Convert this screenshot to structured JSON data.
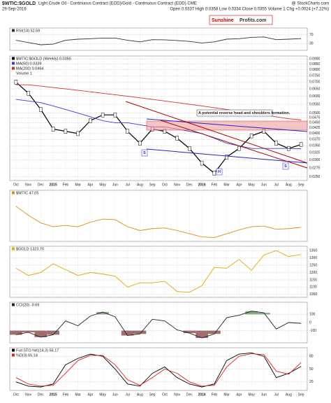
{
  "header": {
    "symbol": "$WTIC:$GOLD",
    "description": "Light Crude Oil - Continuous Contract (EOD)/Gold - Continuous Contract (EOD) CME",
    "source": "@ StockCharts.com",
    "date": "29-Sep-2016",
    "quote": "Open 0.0337 High 0.0358 Low 0.0334 Close 0.0355 Volume 1 Chg +0.0024 (+7.22%)",
    "logo_left": "Sunshine",
    "logo_right": "Profits.com"
  },
  "chart_data": [
    {
      "type": "line",
      "series": [
        {
          "name": "RSI(14) 52.59",
          "color": "#333333",
          "values": [
            45,
            35,
            25,
            28,
            45,
            50,
            52,
            55,
            55,
            45,
            38,
            48,
            47,
            44,
            40,
            33,
            38,
            50,
            52,
            58,
            60,
            48,
            50,
            52.59
          ]
        }
      ],
      "ylim": [
        0,
        100
      ],
      "yticks": [
        30,
        70
      ],
      "grid": true
    },
    {
      "type": "line",
      "categories": [
        "Oct",
        "Nov",
        "Dec",
        "2015",
        "Feb",
        "Mar",
        "Apr",
        "May",
        "Jun",
        "Jul",
        "Aug",
        "Sep",
        "Oct",
        "Nov",
        "Dec",
        "2016",
        "Feb",
        "Mar",
        "Apr",
        "May",
        "Jun",
        "Jul",
        "Aug",
        "Sep"
      ],
      "log_scale": true,
      "extra_legend": "Volume 1",
      "series": [
        {
          "name": "$WTIC:$GOLD (Weekly) 0.0355",
          "color": "#000000",
          "values": [
            0.07,
            0.062,
            0.052,
            0.042,
            0.041,
            0.04,
            0.046,
            0.049,
            0.049,
            0.041,
            0.036,
            0.042,
            0.041,
            0.038,
            0.034,
            0.029,
            0.026,
            0.031,
            0.034,
            0.039,
            0.041,
            0.036,
            0.034,
            0.0355
          ]
        },
        {
          "name": "MA(50) 0.0339",
          "color": "#3a3ad0",
          "values": [
            0.058,
            0.057,
            0.056,
            0.054,
            0.052,
            0.05,
            0.048,
            0.046,
            0.045,
            0.045,
            0.044,
            0.043,
            0.043,
            0.042,
            0.041,
            0.04,
            0.038,
            0.036,
            0.035,
            0.034,
            0.034,
            0.034,
            0.034,
            0.0339
          ]
        },
        {
          "name": "MA(200) 0.0464",
          "color": "#d03030",
          "values": [
            0.068,
            0.068,
            0.067,
            0.066,
            0.065,
            0.064,
            0.063,
            0.062,
            0.061,
            0.06,
            0.059,
            0.058,
            0.057,
            0.056,
            0.055,
            0.054,
            0.053,
            0.052,
            0.051,
            0.05,
            0.049,
            0.048,
            0.047,
            0.0464
          ]
        }
      ],
      "ylim": [
        0.024,
        0.093
      ],
      "yticks": [
        {
          "value": 0.09,
          "label": "0.0900"
        },
        {
          "value": 0.085,
          "label": "0.0850"
        },
        {
          "value": 0.08,
          "label": "0.0800"
        },
        {
          "value": 0.075,
          "label": "0.0750"
        },
        {
          "value": 0.07,
          "label": "0.0700"
        },
        {
          "value": 0.065,
          "label": "0.0650"
        },
        {
          "value": 0.06,
          "label": "0.0600"
        },
        {
          "value": 0.055,
          "label": "0.0550"
        },
        {
          "value": 0.05,
          "label": "0.0500"
        },
        {
          "value": 0.0475,
          "label": "0.0475"
        },
        {
          "value": 0.045,
          "label": "0.0450"
        },
        {
          "value": 0.0425,
          "label": "0.0425"
        },
        {
          "value": 0.04,
          "label": "0.0400"
        },
        {
          "value": 0.0375,
          "label": "0.0375"
        },
        {
          "value": 0.035,
          "label": "0.0350"
        },
        {
          "value": 0.0325,
          "label": "0.0325"
        },
        {
          "value": 0.03,
          "label": "0.0300"
        },
        {
          "value": 0.0275,
          "label": "0.0275"
        },
        {
          "value": 0.025,
          "label": "0.0250"
        }
      ],
      "grid": true,
      "annotations": [
        "A potential reverse head and shoulders formation.",
        "S",
        "H",
        "S"
      ]
    },
    {
      "type": "line",
      "series": [
        {
          "name": "$WTIC 47.05",
          "color": "#e08a1e",
          "values": [
            80,
            66,
            54,
            48,
            50,
            48,
            55,
            60,
            59,
            48,
            42,
            45,
            46,
            42,
            37,
            32,
            31,
            37,
            43,
            48,
            49,
            44,
            45,
            47.05
          ]
        }
      ],
      "ylim": [
        25,
        105
      ],
      "grid": false
    },
    {
      "type": "line",
      "series": [
        {
          "name": "$GOLD 1323.70",
          "color": "#e0a800",
          "values": [
            1230,
            1180,
            1200,
            1260,
            1220,
            1180,
            1200,
            1190,
            1175,
            1100,
            1130,
            1130,
            1140,
            1070,
            1065,
            1110,
            1235,
            1230,
            1290,
            1215,
            1320,
            1350,
            1310,
            1323.7
          ]
        }
      ],
      "ylim": [
        1030,
        1380
      ],
      "yticks": [
        1050,
        1100,
        1150,
        1200,
        1250,
        1300,
        1350
      ],
      "grid": true
    },
    {
      "type": "line",
      "series": [
        {
          "name": "CCI(20) -9.69",
          "color": "#222222",
          "values": [
            -150,
            -120,
            -180,
            -150,
            20,
            -40,
            80,
            130,
            70,
            -160,
            -140,
            40,
            20,
            -90,
            -130,
            -190,
            -140,
            60,
            90,
            140,
            120,
            -80,
            0,
            -9.69
          ]
        }
      ],
      "ylim": [
        -250,
        250
      ],
      "yticks": [
        -100,
        0,
        100
      ],
      "grid": true,
      "fill_beyond": 100
    },
    {
      "type": "line",
      "categories": [
        "Oct",
        "Nov",
        "Dec",
        "2015",
        "Feb",
        "Mar",
        "Apr",
        "May",
        "Jun",
        "Jul",
        "Aug",
        "Sep",
        "Oct",
        "Nov",
        "Dec",
        "2016",
        "Feb",
        "Mar",
        "Apr",
        "May",
        "Jun",
        "Jul",
        "Aug",
        "Sep"
      ],
      "series": [
        {
          "name": "Full STO %K(14,3) 56.17",
          "color": "#000000",
          "values": [
            20,
            10,
            8,
            15,
            60,
            75,
            85,
            80,
            50,
            15,
            10,
            40,
            55,
            30,
            15,
            8,
            15,
            70,
            85,
            88,
            80,
            30,
            40,
            56.17
          ]
        },
        {
          "name": "%D(3) 65.14",
          "color": "#e02020",
          "values": [
            30,
            15,
            10,
            12,
            40,
            70,
            82,
            82,
            60,
            25,
            12,
            30,
            50,
            40,
            20,
            10,
            12,
            55,
            80,
            86,
            84,
            45,
            38,
            65.14
          ]
        }
      ],
      "ylim": [
        0,
        100
      ],
      "yticks": [
        20,
        50,
        80
      ],
      "grid": true
    }
  ]
}
